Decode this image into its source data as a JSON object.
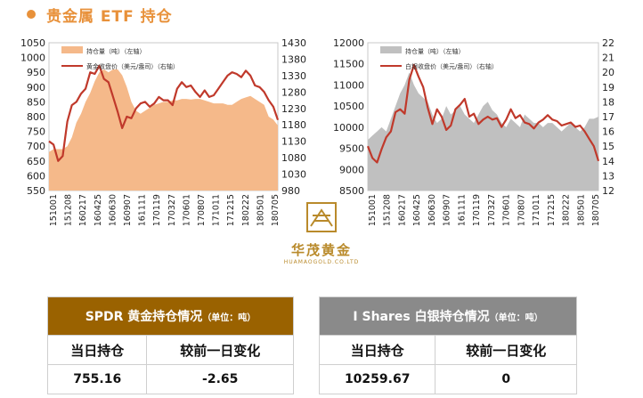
{
  "page": {
    "title": "贵金属 ETF 持仓"
  },
  "colors": {
    "accent": "#e8913a",
    "gold_fill": "#f5b98a",
    "silver_fill": "#c0c0c0",
    "line": "#c0392b",
    "gold_header": "#9a6200",
    "silver_header": "#8a8a8a"
  },
  "logo": {
    "name_cn": "华茂黄金",
    "name_en": "HUAMAOGOLD.CO.LTD"
  },
  "chart_data": [
    {
      "type": "area",
      "x_ticks": [
        "20151001",
        "20151208",
        "20160217",
        "20160425",
        "20160630",
        "20160907",
        "20161111",
        "20170119",
        "20170327",
        "20170601",
        "20170807",
        "20171011",
        "20171215",
        "20180222",
        "20180501",
        "20180705"
      ],
      "ylim": [
        550,
        1050
      ],
      "yticks": [
        550,
        600,
        650,
        700,
        750,
        800,
        850,
        900,
        950,
        1000,
        1050
      ],
      "y2lim": [
        980,
        1430
      ],
      "y2ticks": [
        980,
        1030,
        1080,
        1130,
        1180,
        1230,
        1280,
        1330,
        1380,
        1430
      ],
      "legend": [
        "持仓量（吨）（左轴）",
        "黄金收盘价（美元/盎司）（右轴）"
      ],
      "series": [
        {
          "name": "持仓量（吨）（左轴）",
          "type": "area",
          "axis": "left",
          "values": [
            680,
            690,
            690,
            690,
            700,
            730,
            780,
            810,
            850,
            880,
            920,
            950,
            960,
            950,
            960,
            960,
            940,
            900,
            850,
            820,
            810,
            820,
            830,
            840,
            845,
            850,
            850,
            855,
            855,
            860,
            860,
            858,
            860,
            860,
            855,
            850,
            845,
            845,
            845,
            840,
            840,
            850,
            860,
            865,
            870,
            860,
            850,
            840,
            800,
            790,
            770
          ]
        },
        {
          "name": "黄金收盘价（美元/盎司）（右轴）",
          "type": "line",
          "axis": "right",
          "values": [
            1130,
            1120,
            1070,
            1085,
            1190,
            1240,
            1250,
            1275,
            1290,
            1340,
            1335,
            1360,
            1320,
            1310,
            1265,
            1220,
            1170,
            1205,
            1200,
            1230,
            1245,
            1250,
            1235,
            1245,
            1265,
            1255,
            1255,
            1240,
            1290,
            1310,
            1295,
            1300,
            1280,
            1265,
            1285,
            1265,
            1270,
            1290,
            1310,
            1330,
            1340,
            1335,
            1325,
            1345,
            1330,
            1300,
            1295,
            1280,
            1255,
            1235,
            1195
          ]
        }
      ]
    },
    {
      "type": "area",
      "x_ticks": [
        "20151001",
        "20151208",
        "20160217",
        "20160425",
        "20160630",
        "20160907",
        "20161111",
        "20170119",
        "20170327",
        "20170601",
        "20170807",
        "20171011",
        "20171215",
        "20180222",
        "20180501",
        "20180705"
      ],
      "ylim": [
        8500,
        12000
      ],
      "yticks": [
        8500,
        9000,
        9500,
        10000,
        10500,
        11000,
        11500,
        12000
      ],
      "y2lim": [
        12,
        22
      ],
      "y2ticks": [
        12,
        13,
        14,
        15,
        16,
        17,
        18,
        19,
        20,
        21,
        22
      ],
      "legend": [
        "持仓量（吨）（左轴）",
        "白银收盘价（美元/盎司）（右轴）"
      ],
      "series": [
        {
          "name": "持仓量（吨）（左轴）",
          "type": "area",
          "axis": "left",
          "values": [
            9700,
            9800,
            9900,
            10000,
            9900,
            10200,
            10500,
            10800,
            11000,
            11300,
            11000,
            10800,
            10700,
            10600,
            10300,
            10100,
            10200,
            10500,
            10300,
            10400,
            10500,
            10300,
            10200,
            10100,
            10300,
            10500,
            10600,
            10400,
            10300,
            10100,
            10000,
            10200,
            10100,
            10000,
            10300,
            10200,
            10100,
            10100,
            10000,
            10100,
            10100,
            10000,
            9900,
            10000,
            10100,
            10000,
            9900,
            10000,
            10200,
            10200,
            10250
          ]
        },
        {
          "name": "白银收盘价（美元/盎司）（右轴）",
          "type": "line",
          "axis": "right",
          "values": [
            15.0,
            14.2,
            13.9,
            14.8,
            15.6,
            16.0,
            17.3,
            17.5,
            17.2,
            19.5,
            20.5,
            19.7,
            19.0,
            17.6,
            16.5,
            17.5,
            17.0,
            16.1,
            16.4,
            17.5,
            17.8,
            18.2,
            17.0,
            17.2,
            16.5,
            16.8,
            17.0,
            16.8,
            16.9,
            16.3,
            16.8,
            17.5,
            16.9,
            17.1,
            16.6,
            16.5,
            16.2,
            16.6,
            16.8,
            17.1,
            16.8,
            16.7,
            16.4,
            16.5,
            16.6,
            16.3,
            16.4,
            16.0,
            15.5,
            15.0,
            14.0
          ]
        }
      ]
    }
  ],
  "tables": [
    {
      "header": "SPDR 黄金持仓情况",
      "unit": "（单位：吨）",
      "col1": "当日持仓",
      "col2": "较前一日变化",
      "val1": "755.16",
      "val2": "-2.65"
    },
    {
      "header": "I Shares 白银持仓情况",
      "unit": "（单位：吨）",
      "col1": "当日持仓",
      "col2": "较前一日变化",
      "val1": "10259.67",
      "val2": "0"
    }
  ]
}
